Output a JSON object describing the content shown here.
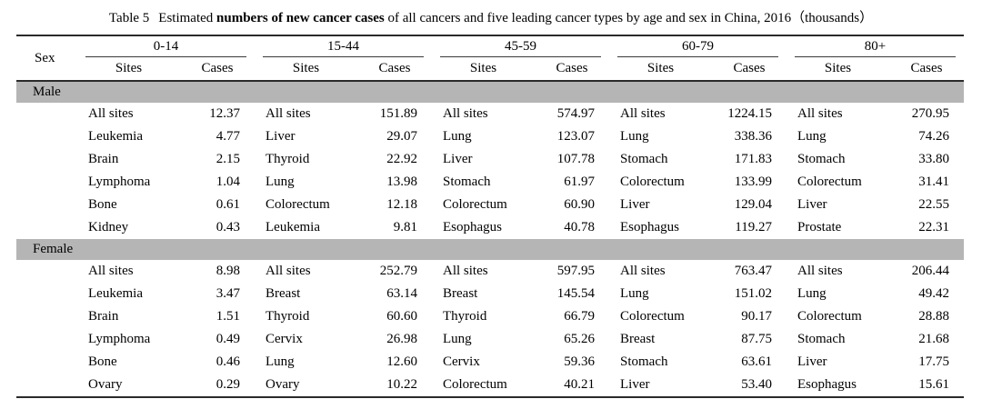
{
  "title": {
    "label": "Table 5",
    "before_bold": "Estimated",
    "bold": "numbers of new cancer cases",
    "after_bold": "of all cancers and five leading cancer types by age and sex in China, 2016（thousands）"
  },
  "table": {
    "sex_header": "Sex",
    "sub_headers": {
      "sites": "Sites",
      "cases": "Cases"
    },
    "age_groups": [
      "0-14",
      "15-44",
      "45-59",
      "60-79",
      "80+"
    ],
    "sections": [
      {
        "sex": "Male",
        "rows": [
          [
            [
              "All sites",
              "12.37"
            ],
            [
              "All sites",
              "151.89"
            ],
            [
              "All sites",
              "574.97"
            ],
            [
              "All sites",
              "1224.15"
            ],
            [
              "All sites",
              "270.95"
            ]
          ],
          [
            [
              "Leukemia",
              "4.77"
            ],
            [
              "Liver",
              "29.07"
            ],
            [
              "Lung",
              "123.07"
            ],
            [
              "Lung",
              "338.36"
            ],
            [
              "Lung",
              "74.26"
            ]
          ],
          [
            [
              "Brain",
              "2.15"
            ],
            [
              "Thyroid",
              "22.92"
            ],
            [
              "Liver",
              "107.78"
            ],
            [
              "Stomach",
              "171.83"
            ],
            [
              "Stomach",
              "33.80"
            ]
          ],
          [
            [
              "Lymphoma",
              "1.04"
            ],
            [
              "Lung",
              "13.98"
            ],
            [
              "Stomach",
              "61.97"
            ],
            [
              "Colorectum",
              "133.99"
            ],
            [
              "Colorectum",
              "31.41"
            ]
          ],
          [
            [
              "Bone",
              "0.61"
            ],
            [
              "Colorectum",
              "12.18"
            ],
            [
              "Colorectum",
              "60.90"
            ],
            [
              "Liver",
              "129.04"
            ],
            [
              "Liver",
              "22.55"
            ]
          ],
          [
            [
              "Kidney",
              "0.43"
            ],
            [
              "Leukemia",
              "9.81"
            ],
            [
              "Esophagus",
              "40.78"
            ],
            [
              "Esophagus",
              "119.27"
            ],
            [
              "Prostate",
              "22.31"
            ]
          ]
        ]
      },
      {
        "sex": "Female",
        "rows": [
          [
            [
              "All sites",
              "8.98"
            ],
            [
              "All sites",
              "252.79"
            ],
            [
              "All sites",
              "597.95"
            ],
            [
              "All sites",
              "763.47"
            ],
            [
              "All sites",
              "206.44"
            ]
          ],
          [
            [
              "Leukemia",
              "3.47"
            ],
            [
              "Breast",
              "63.14"
            ],
            [
              "Breast",
              "145.54"
            ],
            [
              "Lung",
              "151.02"
            ],
            [
              "Lung",
              "49.42"
            ]
          ],
          [
            [
              "Brain",
              "1.51"
            ],
            [
              "Thyroid",
              "60.60"
            ],
            [
              "Thyroid",
              "66.79"
            ],
            [
              "Colorectum",
              "90.17"
            ],
            [
              "Colorectum",
              "28.88"
            ]
          ],
          [
            [
              "Lymphoma",
              "0.49"
            ],
            [
              "Cervix",
              "26.98"
            ],
            [
              "Lung",
              "65.26"
            ],
            [
              "Breast",
              "87.75"
            ],
            [
              "Stomach",
              "21.68"
            ]
          ],
          [
            [
              "Bone",
              "0.46"
            ],
            [
              "Lung",
              "12.60"
            ],
            [
              "Cervix",
              "59.36"
            ],
            [
              "Stomach",
              "63.61"
            ],
            [
              "Liver",
              "17.75"
            ]
          ],
          [
            [
              "Ovary",
              "0.29"
            ],
            [
              "Ovary",
              "10.22"
            ],
            [
              "Colorectum",
              "40.21"
            ],
            [
              "Liver",
              "53.40"
            ],
            [
              "Esophagus",
              "15.61"
            ]
          ]
        ]
      }
    ]
  },
  "colors": {
    "band_gray": "#b5b5b5",
    "rule_dark": "#2a2a2a",
    "text": "#000000"
  }
}
